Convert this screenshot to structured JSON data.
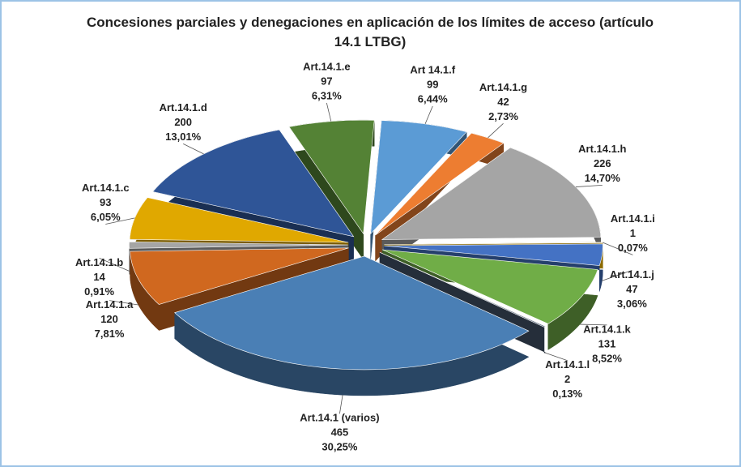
{
  "chart_data": {
    "type": "pie",
    "title": "Concesiones parciales y denegaciones en aplicación de los límites de acceso (artículo 14.1 LTBG)",
    "categories": [
      "Art.14.1.a",
      "Art.14.1.b",
      "Art.14.1.c",
      "Art.14.1.d",
      "Art.14.1.e",
      "Art 14.1.f",
      "Art.14.1.g",
      "Art.14.1.h",
      "Art.14.1.i",
      "Art.14.1.j",
      "Art.14.1.k",
      "Art.14.1.l",
      "Art.14.1 (varios)"
    ],
    "values": [
      120,
      14,
      93,
      200,
      97,
      99,
      42,
      226,
      1,
      47,
      131,
      2,
      465
    ],
    "percents": [
      7.81,
      0.91,
      6.05,
      13.01,
      6.31,
      6.44,
      2.73,
      14.7,
      0.07,
      3.06,
      8.52,
      0.13,
      30.25
    ],
    "percent_labels": [
      "7,81%",
      "0,91%",
      "6,05%",
      "13,01%",
      "6,31%",
      "6,44%",
      "2,73%",
      "14,70%",
      "0,07%",
      "3,06%",
      "8,52%",
      "0,13%",
      "30,25%"
    ],
    "colors": [
      "#d0681f",
      "#a5a5a5",
      "#e0a800",
      "#2f5597",
      "#548235",
      "#5b9bd5",
      "#ed7d31",
      "#a5a5a5",
      "#ffc000",
      "#4472c4",
      "#70ad47",
      "#44546a",
      "#4a7fb5"
    ]
  }
}
